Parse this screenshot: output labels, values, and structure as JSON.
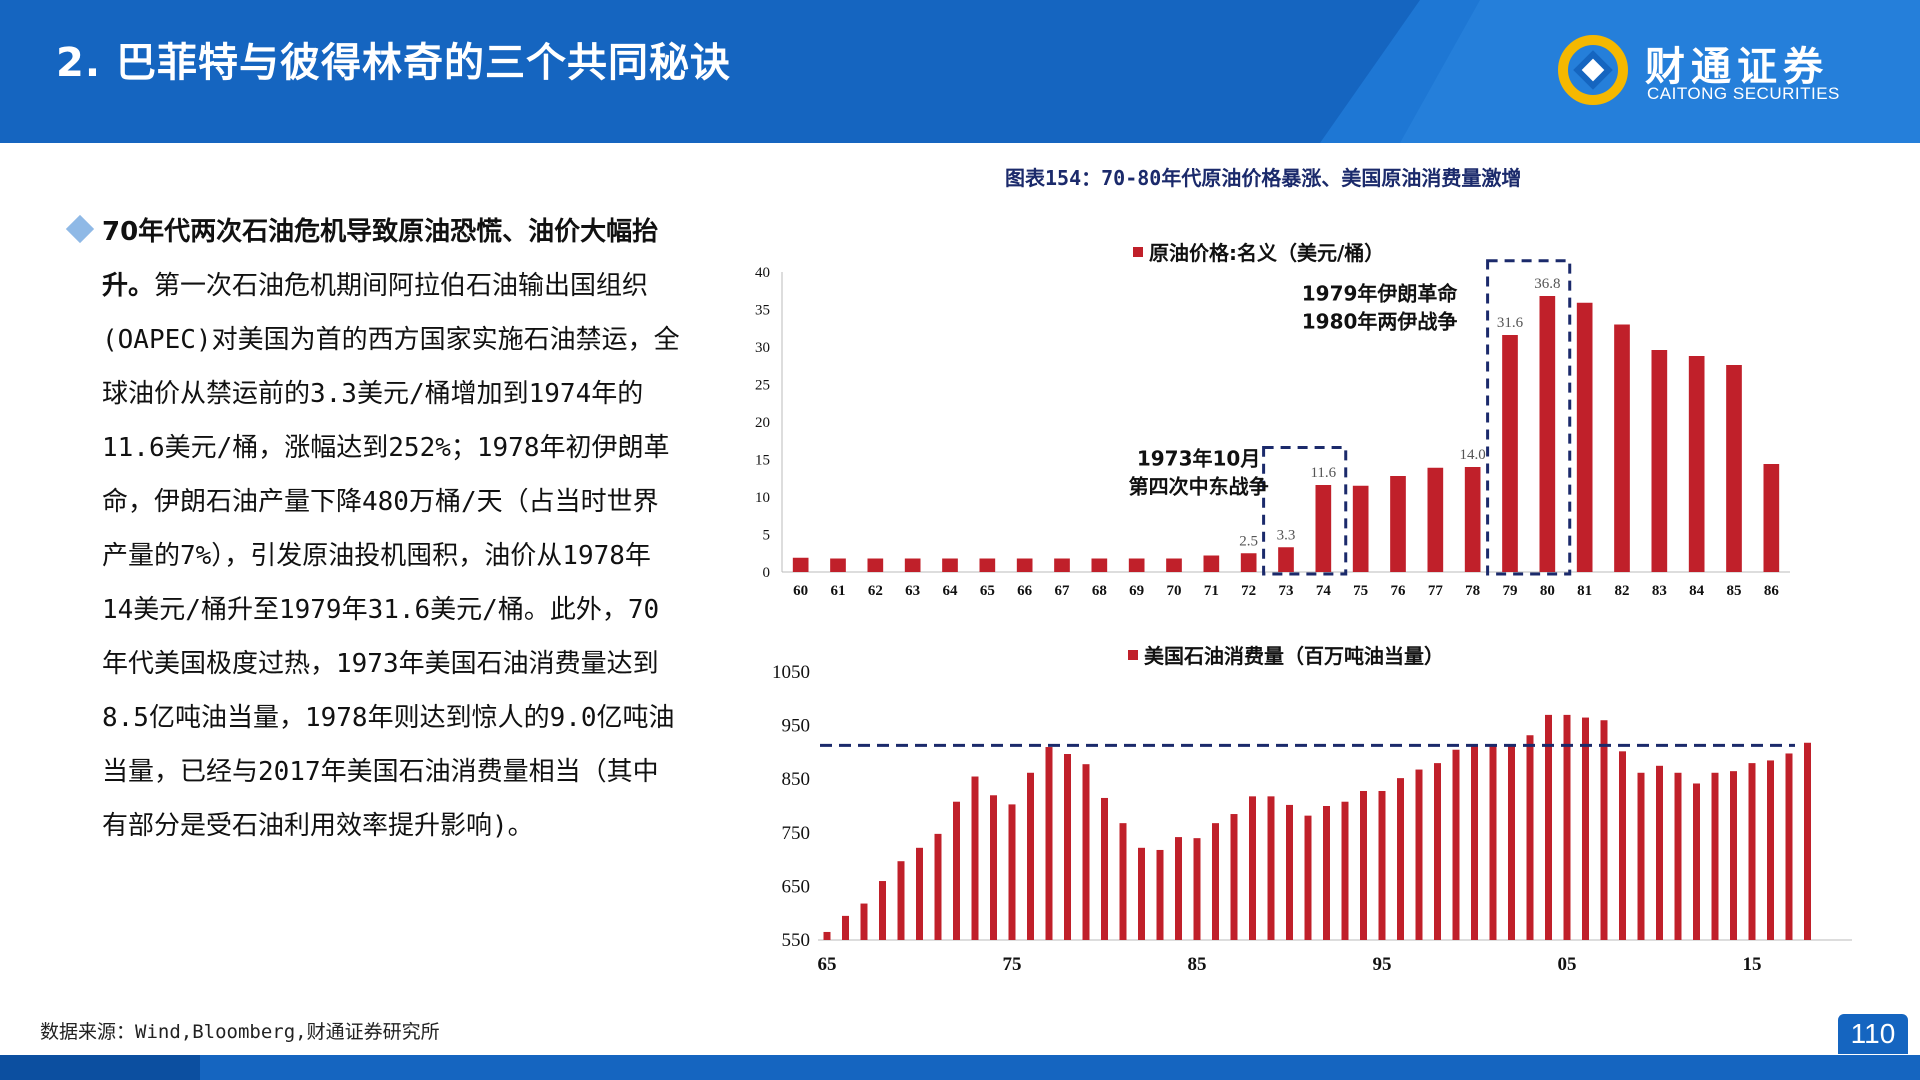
{
  "header": {
    "title": "2. 巴菲特与彼得林奇的三个共同秘诀",
    "brand_bg": "#1565c0",
    "logo_cn": "财通证券",
    "logo_en": "CAITONG SECURITIES"
  },
  "text_block": {
    "bold": "70年代两次石油危机导致原油恐慌、油价大幅抬升。",
    "body": "第一次石油危机期间阿拉伯石油输出国组织(OAPEC)对美国为首的西方国家实施石油禁运，全球油价从禁运前的3.3美元/桶增加到1974年的11.6美元/桶，涨幅达到252%；1978年初伊朗革命，伊朗石油产量下降480万桶/天（占当时世界产量的7%），引发原油投机囤积，油价从1978年14美元/桶升至1979年31.6美元/桶。此外，70年代美国极度过热，1973年美国石油消费量达到8.5亿吨油当量，1978年则达到惊人的9.0亿吨油当量，已经与2017年美国石油消费量相当（其中有部分是受石油利用效率提升影响)。"
  },
  "figure": {
    "title": "图表154：70-80年代原油价格暴涨、美国原油消费量激增"
  },
  "chart_data": [
    {
      "type": "bar",
      "legend": "原油价格:名义（美元/桶）",
      "color": "#c0202a",
      "categories": [
        "60",
        "61",
        "62",
        "63",
        "64",
        "65",
        "66",
        "67",
        "68",
        "69",
        "70",
        "71",
        "72",
        "73",
        "74",
        "75",
        "76",
        "77",
        "78",
        "79",
        "80",
        "81",
        "82",
        "83",
        "84",
        "85",
        "86"
      ],
      "values": [
        1.9,
        1.8,
        1.8,
        1.8,
        1.8,
        1.8,
        1.8,
        1.8,
        1.8,
        1.8,
        1.8,
        2.2,
        2.5,
        3.3,
        11.6,
        11.5,
        12.8,
        13.9,
        14.0,
        31.6,
        36.8,
        35.9,
        33.0,
        29.6,
        28.8,
        27.6,
        14.4
      ],
      "data_labels": {
        "72": "2.5",
        "73": "3.3",
        "74": "11.6",
        "78": "14.0",
        "79": "31.6",
        "80": "36.8"
      },
      "yticks": [
        0,
        5,
        10,
        15,
        20,
        25,
        30,
        35,
        40
      ],
      "ylim": [
        0,
        40
      ],
      "annotations": [
        {
          "text": [
            "1973年10月",
            "第四次中东战争"
          ],
          "range": [
            "73",
            "74"
          ]
        },
        {
          "text": [
            "1979年伊朗革命",
            "1980年两伊战争"
          ],
          "range": [
            "79",
            "80"
          ]
        }
      ]
    },
    {
      "type": "bar",
      "legend": "美国石油消费量（百万吨油当量）",
      "color": "#c0202a",
      "x_start": 1965,
      "values": [
        565,
        595,
        618,
        660,
        697,
        722,
        748,
        808,
        855,
        820,
        803,
        862,
        910,
        897,
        878,
        815,
        768,
        722,
        718,
        742,
        740,
        768,
        785,
        818,
        818,
        802,
        782,
        800,
        808,
        828,
        828,
        852,
        868,
        880,
        905,
        915,
        912,
        912,
        932,
        970,
        970,
        965,
        960,
        902,
        862,
        875,
        862,
        842,
        862,
        865,
        880,
        885,
        898,
        918
      ],
      "xticks": [
        {
          "year": 1965,
          "label": "65"
        },
        {
          "year": 1975,
          "label": "75"
        },
        {
          "year": 1985,
          "label": "85"
        },
        {
          "year": 1995,
          "label": "95"
        },
        {
          "year": 2005,
          "label": "05"
        },
        {
          "year": 2015,
          "label": "15"
        }
      ],
      "yticks": [
        550,
        650,
        750,
        850,
        950,
        1050
      ],
      "ylim": [
        550,
        1050
      ],
      "reference_line": 913
    }
  ],
  "source": "数据来源：Wind,Bloomberg,财通证券研究所",
  "page_number": "110"
}
